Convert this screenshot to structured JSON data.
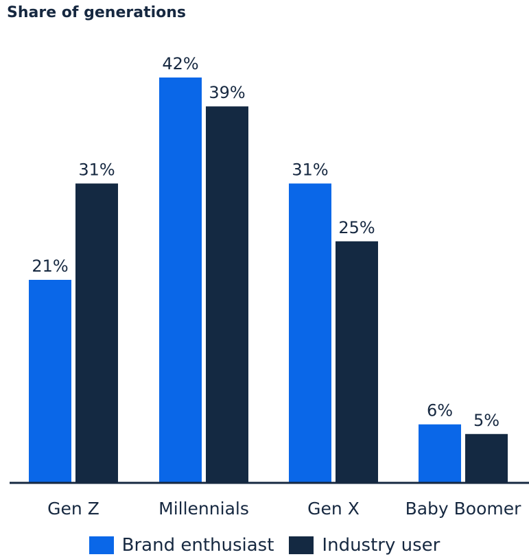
{
  "chart_data": {
    "type": "bar",
    "title": "Share of generations",
    "categories": [
      "Gen Z",
      "Millennials",
      "Gen X",
      "Baby Boomer"
    ],
    "series": [
      {
        "name": "Brand enthusiast",
        "values": [
          21,
          42,
          31,
          6
        ],
        "labels": [
          "21%",
          "42%",
          "31%",
          "6%"
        ],
        "color": "#0a67e8"
      },
      {
        "name": "Industry user",
        "values": [
          31,
          39,
          25,
          5
        ],
        "labels": [
          "31%",
          "39%",
          "25%",
          "5%"
        ],
        "color": "#142942"
      }
    ],
    "ylim": [
      0,
      42
    ],
    "grid": false,
    "legend_position": "bottom"
  }
}
